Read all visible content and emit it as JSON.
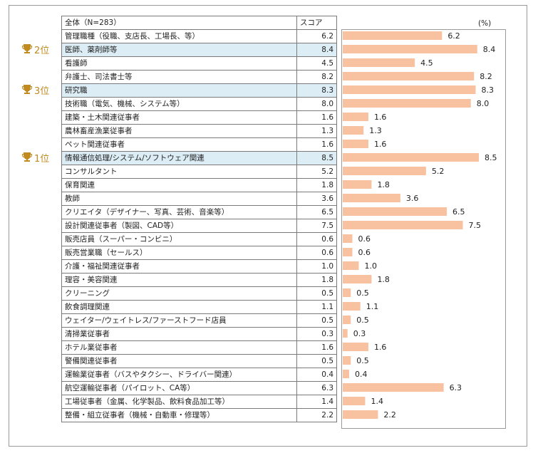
{
  "header": {
    "group": "全体（N=283）",
    "score_label": "スコア",
    "unit": "(%)"
  },
  "rank_badges": [
    {
      "label": "2位",
      "row": 1,
      "icon": "trophy-icon"
    },
    {
      "label": "3位",
      "row": 4,
      "icon": "trophy-icon"
    },
    {
      "label": "1位",
      "row": 9,
      "icon": "trophy-icon"
    }
  ],
  "colors": {
    "bar": "#f8c2a0",
    "highlight": "#dcedf6",
    "rank": "#c08a1e"
  },
  "chart_data": {
    "type": "bar",
    "orientation": "horizontal",
    "title": "",
    "xlabel": "(%)",
    "xlim": [
      0,
      9
    ],
    "categories": [
      "管理職種（役職、支店長、工場長、等）",
      "医師、薬剤師等",
      "看護師",
      "弁護士、司法書士等",
      "研究職",
      "技術職（電気、機械、システム等）",
      "建築・土木関連従事者",
      "農林畜産漁業従事者",
      "ペット関連従事者",
      "情報通信処理/システム/ソフトウェア関連",
      "コンサルタント",
      "保育関連",
      "教師",
      "クリエイタ（デザイナー、写真、芸術、音楽等）",
      "設計関連従事者（製図、CAD等）",
      "販売店員（スーパー・コンビニ）",
      "販売営業職（セールス）",
      "介護・福祉関連従事者",
      "理容・美容関連",
      "クリーニング",
      "飲食調理関連",
      "ウェイター/ウェイトレス/ファーストフード店員",
      "清掃業従事者",
      "ホテル業従事者",
      "警備関連従事者",
      "運輸業従事者（バスやタクシー、ドライバー関連）",
      "航空運輸従事者（パイロット、CA等）",
      "工場従事者（金属、化学製品、飲料食品加工等）",
      "整備・組立従事者（機械・自動車・修理等）"
    ],
    "values": [
      6.2,
      8.4,
      4.5,
      8.2,
      8.3,
      8.0,
      1.6,
      1.3,
      1.6,
      8.5,
      5.2,
      1.8,
      3.6,
      6.5,
      7.5,
      0.6,
      0.6,
      1.0,
      1.8,
      0.5,
      1.1,
      0.5,
      0.3,
      1.6,
      0.5,
      0.4,
      6.3,
      1.4,
      2.2
    ],
    "value_labels": [
      "6.2",
      "8.4",
      "4.5",
      "8.2",
      "8.3",
      "8.0",
      "1.6",
      "1.3",
      "1.6",
      "8.5",
      "5.2",
      "1.8",
      "3.6",
      "6.5",
      "7.5",
      "0.6",
      "0.6",
      "1.0",
      "1.8",
      "0.5",
      "1.1",
      "0.5",
      "0.3",
      "1.6",
      "0.5",
      "0.4",
      "6.3",
      "1.4",
      "2.2"
    ],
    "highlighted": [
      1,
      4,
      9
    ]
  }
}
